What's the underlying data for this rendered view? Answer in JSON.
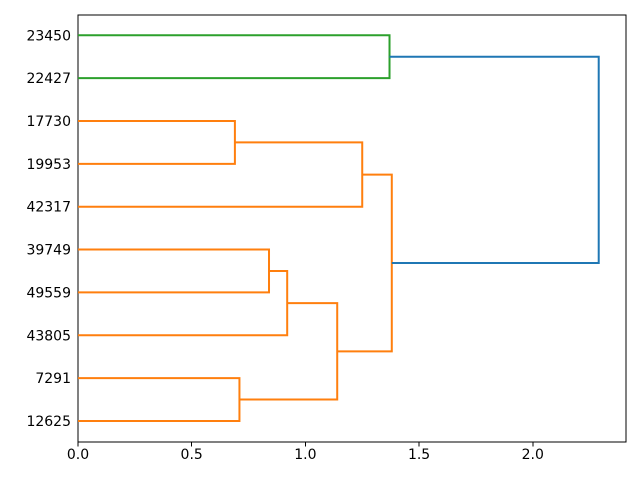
{
  "figure": {
    "background": "#ffffff",
    "text_color": "#000000"
  },
  "chart_data": {
    "type": "dendrogram",
    "orientation": "left",
    "title": "",
    "xlabel": "",
    "ylabel": "",
    "leaf_labels": [
      "23450",
      "22427",
      "17730",
      "19953",
      "42317",
      "39749",
      "49559",
      "43805",
      "7291",
      "12625"
    ],
    "colors": {
      "blue": "#1f77b4",
      "orange": "#ff7f0e",
      "green": "#2ca02c",
      "axis": "#000000"
    },
    "links": [
      {
        "child_a": "leaf:2",
        "child_b": "leaf:3",
        "distance": 0.69,
        "color": "#ff7f0e"
      },
      {
        "child_a": "link:0",
        "child_b": "leaf:4",
        "distance": 1.25,
        "color": "#ff7f0e"
      },
      {
        "child_a": "leaf:5",
        "child_b": "leaf:6",
        "distance": 0.84,
        "color": "#ff7f0e"
      },
      {
        "child_a": "link:2",
        "child_b": "leaf:7",
        "distance": 0.92,
        "color": "#ff7f0e"
      },
      {
        "child_a": "leaf:8",
        "child_b": "leaf:9",
        "distance": 0.71,
        "color": "#ff7f0e"
      },
      {
        "child_a": "link:3",
        "child_b": "link:4",
        "distance": 1.14,
        "color": "#ff7f0e"
      },
      {
        "child_a": "link:1",
        "child_b": "link:5",
        "distance": 1.38,
        "color": "#ff7f0e"
      },
      {
        "child_a": "leaf:0",
        "child_b": "leaf:1",
        "distance": 1.37,
        "color": "#2ca02c"
      },
      {
        "child_a": "link:7",
        "child_b": "link:6",
        "distance": 2.29,
        "color": "#1f77b4"
      }
    ],
    "x_axis": {
      "lim": [
        0,
        2.41
      ],
      "ticks": [
        {
          "value": 0.0,
          "label": "0.0"
        },
        {
          "value": 0.5,
          "label": "0.5"
        },
        {
          "value": 1.0,
          "label": "1.0"
        },
        {
          "value": 1.5,
          "label": "1.5"
        },
        {
          "value": 2.0,
          "label": "2.0"
        }
      ]
    },
    "y_axis": {
      "ticks_visible": false
    },
    "legend": null
  }
}
